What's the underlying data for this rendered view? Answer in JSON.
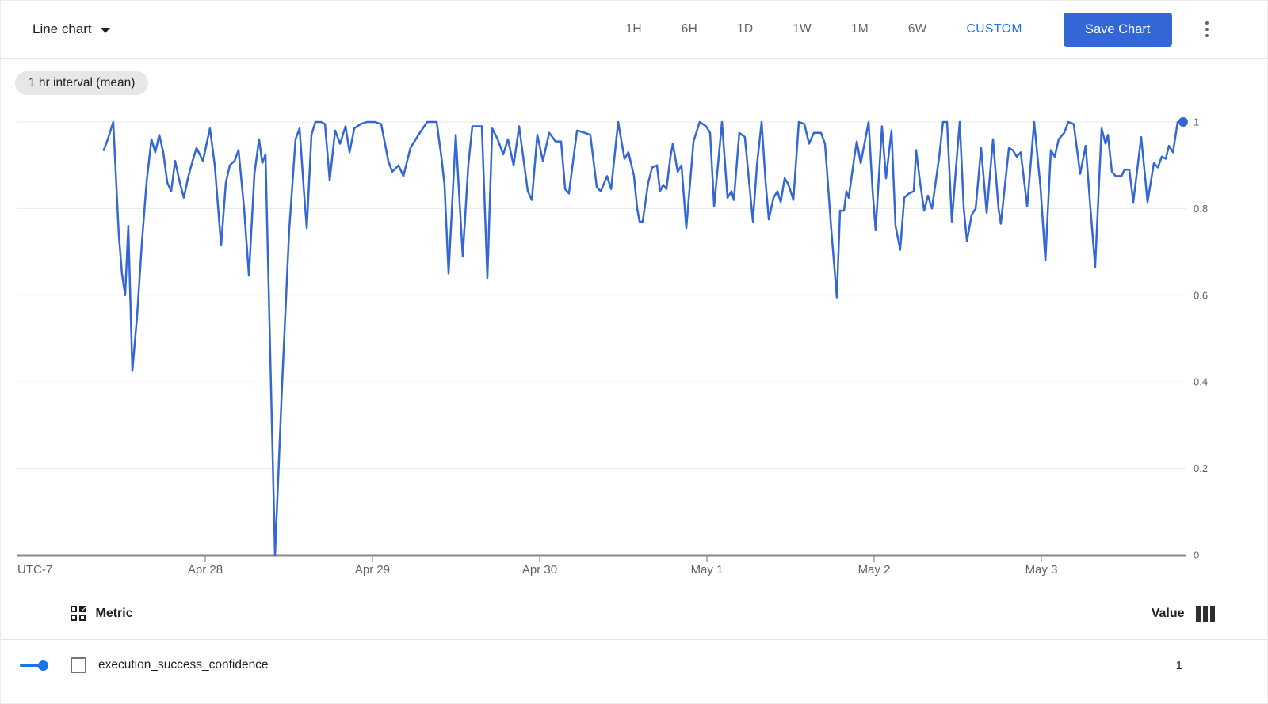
{
  "toolbar": {
    "chart_type_label": "Line chart",
    "time_ranges": [
      "1H",
      "6H",
      "1D",
      "1W",
      "1M",
      "6W"
    ],
    "custom_label": "CUSTOM",
    "save_button_label": "Save Chart"
  },
  "interval_chip": "1 hr interval (mean)",
  "chart_data": {
    "type": "line",
    "aggregation": "1 hr interval (mean)",
    "grid": true,
    "end_dot": true,
    "legend_position": "bottom-table",
    "x_axis": {
      "timezone_label": "UTC-7",
      "tick_labels": [
        "Apr 28",
        "Apr 29",
        "Apr 30",
        "May 1",
        "May 2",
        "May 3"
      ],
      "tick_day_offsets": [
        0,
        1,
        2,
        3,
        4,
        5
      ],
      "time_unit": "days since Apr 28 00:00 (UTC-7)"
    },
    "y_axis": {
      "tick_labels": [
        "0",
        "0.2",
        "0.4",
        "0.6",
        "0.8",
        "1"
      ],
      "tick_values": [
        0,
        0.2,
        0.4,
        0.6,
        0.8,
        1
      ],
      "range": [
        0,
        1
      ]
    },
    "series": [
      {
        "name": "execution_success_confidence",
        "color": "#3367d6",
        "latest_value": 1,
        "points": [
          [
            -0.607,
            0.935
          ],
          [
            -0.583,
            0.96
          ],
          [
            -0.55,
            1
          ],
          [
            -0.517,
            0.74
          ],
          [
            -0.498,
            0.65
          ],
          [
            -0.479,
            0.6
          ],
          [
            -0.46,
            0.76
          ],
          [
            -0.436,
            0.425
          ],
          [
            -0.408,
            0.55
          ],
          [
            -0.379,
            0.72
          ],
          [
            -0.351,
            0.86
          ],
          [
            -0.322,
            0.96
          ],
          [
            -0.299,
            0.93
          ],
          [
            -0.275,
            0.97
          ],
          [
            -0.251,
            0.93
          ],
          [
            -0.227,
            0.86
          ],
          [
            -0.204,
            0.84
          ],
          [
            -0.18,
            0.91
          ],
          [
            -0.152,
            0.86
          ],
          [
            -0.128,
            0.825
          ],
          [
            -0.104,
            0.87
          ],
          [
            -0.076,
            0.91
          ],
          [
            -0.052,
            0.94
          ],
          [
            -0.014,
            0.91
          ],
          [
            0.028,
            0.985
          ],
          [
            0.057,
            0.9
          ],
          [
            0.095,
            0.715
          ],
          [
            0.123,
            0.86
          ],
          [
            0.147,
            0.9
          ],
          [
            0.175,
            0.91
          ],
          [
            0.199,
            0.935
          ],
          [
            0.232,
            0.8
          ],
          [
            0.261,
            0.645
          ],
          [
            0.294,
            0.88
          ],
          [
            0.322,
            0.96
          ],
          [
            0.341,
            0.905
          ],
          [
            0.36,
            0.925
          ],
          [
            0.417,
            0
          ],
          [
            0.46,
            0.4
          ],
          [
            0.502,
            0.75
          ],
          [
            0.54,
            0.96
          ],
          [
            0.564,
            0.985
          ],
          [
            0.592,
            0.83
          ],
          [
            0.607,
            0.755
          ],
          [
            0.635,
            0.97
          ],
          [
            0.659,
            1
          ],
          [
            0.692,
            1
          ],
          [
            0.716,
            0.995
          ],
          [
            0.744,
            0.865
          ],
          [
            0.777,
            0.98
          ],
          [
            0.806,
            0.95
          ],
          [
            0.839,
            0.99
          ],
          [
            0.863,
            0.93
          ],
          [
            0.891,
            0.985
          ],
          [
            0.929,
            0.995
          ],
          [
            0.967,
            1
          ],
          [
            1.014,
            1
          ],
          [
            1.052,
            0.995
          ],
          [
            1.095,
            0.91
          ],
          [
            1.118,
            0.885
          ],
          [
            1.156,
            0.9
          ],
          [
            1.185,
            0.875
          ],
          [
            1.227,
            0.94
          ],
          [
            1.275,
            0.97
          ],
          [
            1.327,
            1
          ],
          [
            1.384,
            1
          ],
          [
            1.412,
            0.92
          ],
          [
            1.431,
            0.855
          ],
          [
            1.455,
            0.65
          ],
          [
            1.498,
            0.97
          ],
          [
            1.54,
            0.69
          ],
          [
            1.573,
            0.9
          ],
          [
            1.597,
            0.99
          ],
          [
            1.654,
            0.99
          ],
          [
            1.687,
            0.64
          ],
          [
            1.716,
            0.985
          ],
          [
            1.749,
            0.96
          ],
          [
            1.782,
            0.925
          ],
          [
            1.81,
            0.96
          ],
          [
            1.844,
            0.9
          ],
          [
            1.877,
            0.99
          ],
          [
            1.929,
            0.84
          ],
          [
            1.953,
            0.82
          ],
          [
            1.986,
            0.97
          ],
          [
            2.019,
            0.91
          ],
          [
            2.057,
            0.975
          ],
          [
            2.095,
            0.955
          ],
          [
            2.128,
            0.955
          ],
          [
            2.152,
            0.845
          ],
          [
            2.175,
            0.835
          ],
          [
            2.223,
            0.98
          ],
          [
            2.27,
            0.975
          ],
          [
            2.303,
            0.97
          ],
          [
            2.341,
            0.85
          ],
          [
            2.365,
            0.84
          ],
          [
            2.403,
            0.875
          ],
          [
            2.427,
            0.845
          ],
          [
            2.469,
            1
          ],
          [
            2.507,
            0.915
          ],
          [
            2.531,
            0.93
          ],
          [
            2.564,
            0.875
          ],
          [
            2.583,
            0.8
          ],
          [
            2.597,
            0.77
          ],
          [
            2.616,
            0.77
          ],
          [
            2.649,
            0.86
          ],
          [
            2.673,
            0.895
          ],
          [
            2.701,
            0.9
          ],
          [
            2.72,
            0.84
          ],
          [
            2.739,
            0.855
          ],
          [
            2.758,
            0.845
          ],
          [
            2.782,
            0.92
          ],
          [
            2.796,
            0.95
          ],
          [
            2.825,
            0.885
          ],
          [
            2.848,
            0.9
          ],
          [
            2.877,
            0.755
          ],
          [
            2.92,
            0.955
          ],
          [
            2.957,
            1
          ],
          [
            2.995,
            0.99
          ],
          [
            3.019,
            0.975
          ],
          [
            3.043,
            0.805
          ],
          [
            3.09,
            1
          ],
          [
            3.123,
            0.825
          ],
          [
            3.147,
            0.84
          ],
          [
            3.161,
            0.82
          ],
          [
            3.194,
            0.975
          ],
          [
            3.227,
            0.965
          ],
          [
            3.275,
            0.77
          ],
          [
            3.299,
            0.9
          ],
          [
            3.327,
            1
          ],
          [
            3.351,
            0.86
          ],
          [
            3.37,
            0.775
          ],
          [
            3.398,
            0.825
          ],
          [
            3.422,
            0.84
          ],
          [
            3.441,
            0.815
          ],
          [
            3.465,
            0.87
          ],
          [
            3.488,
            0.855
          ],
          [
            3.517,
            0.82
          ],
          [
            3.55,
            1
          ],
          [
            3.583,
            0.995
          ],
          [
            3.611,
            0.95
          ],
          [
            3.64,
            0.975
          ],
          [
            3.682,
            0.975
          ],
          [
            3.706,
            0.95
          ],
          [
            3.744,
            0.75
          ],
          [
            3.777,
            0.595
          ],
          [
            3.796,
            0.795
          ],
          [
            3.82,
            0.795
          ],
          [
            3.834,
            0.84
          ],
          [
            3.848,
            0.825
          ],
          [
            3.882,
            0.92
          ],
          [
            3.896,
            0.955
          ],
          [
            3.92,
            0.905
          ],
          [
            3.967,
            1
          ],
          [
            3.991,
            0.84
          ],
          [
            4.009,
            0.75
          ],
          [
            4.047,
            0.99
          ],
          [
            4.071,
            0.87
          ],
          [
            4.104,
            0.98
          ],
          [
            4.128,
            0.76
          ],
          [
            4.156,
            0.705
          ],
          [
            4.18,
            0.825
          ],
          [
            4.209,
            0.835
          ],
          [
            4.237,
            0.84
          ],
          [
            4.251,
            0.935
          ],
          [
            4.275,
            0.86
          ],
          [
            4.299,
            0.795
          ],
          [
            4.322,
            0.83
          ],
          [
            4.346,
            0.8
          ],
          [
            4.389,
            0.92
          ],
          [
            4.412,
            1
          ],
          [
            4.436,
            1
          ],
          [
            4.465,
            0.77
          ],
          [
            4.493,
            0.91
          ],
          [
            4.512,
            1
          ],
          [
            4.536,
            0.8
          ],
          [
            4.555,
            0.725
          ],
          [
            4.583,
            0.785
          ],
          [
            4.607,
            0.8
          ],
          [
            4.64,
            0.94
          ],
          [
            4.673,
            0.79
          ],
          [
            4.711,
            0.96
          ],
          [
            4.744,
            0.8
          ],
          [
            4.758,
            0.765
          ],
          [
            4.806,
            0.94
          ],
          [
            4.829,
            0.935
          ],
          [
            4.853,
            0.92
          ],
          [
            4.877,
            0.93
          ],
          [
            4.915,
            0.805
          ],
          [
            4.957,
            1
          ],
          [
            4.995,
            0.85
          ],
          [
            5.024,
            0.68
          ],
          [
            5.057,
            0.935
          ],
          [
            5.08,
            0.92
          ],
          [
            5.104,
            0.96
          ],
          [
            5.137,
            0.975
          ],
          [
            5.161,
            1
          ],
          [
            5.194,
            0.995
          ],
          [
            5.232,
            0.88
          ],
          [
            5.265,
            0.945
          ],
          [
            5.294,
            0.8
          ],
          [
            5.322,
            0.665
          ],
          [
            5.36,
            0.985
          ],
          [
            5.384,
            0.95
          ],
          [
            5.398,
            0.97
          ],
          [
            5.422,
            0.885
          ],
          [
            5.445,
            0.875
          ],
          [
            5.479,
            0.875
          ],
          [
            5.498,
            0.89
          ],
          [
            5.526,
            0.89
          ],
          [
            5.55,
            0.815
          ],
          [
            5.597,
            0.965
          ],
          [
            5.635,
            0.815
          ],
          [
            5.673,
            0.905
          ],
          [
            5.697,
            0.895
          ],
          [
            5.72,
            0.92
          ],
          [
            5.744,
            0.915
          ],
          [
            5.763,
            0.945
          ],
          [
            5.787,
            0.93
          ],
          [
            5.815,
            1
          ],
          [
            5.848,
            1
          ]
        ]
      }
    ]
  },
  "table": {
    "metric_header": "Metric",
    "value_header": "Value",
    "rows": [
      {
        "metric": "execution_success_confidence",
        "value": "1",
        "color": "#1a73e8"
      }
    ]
  }
}
